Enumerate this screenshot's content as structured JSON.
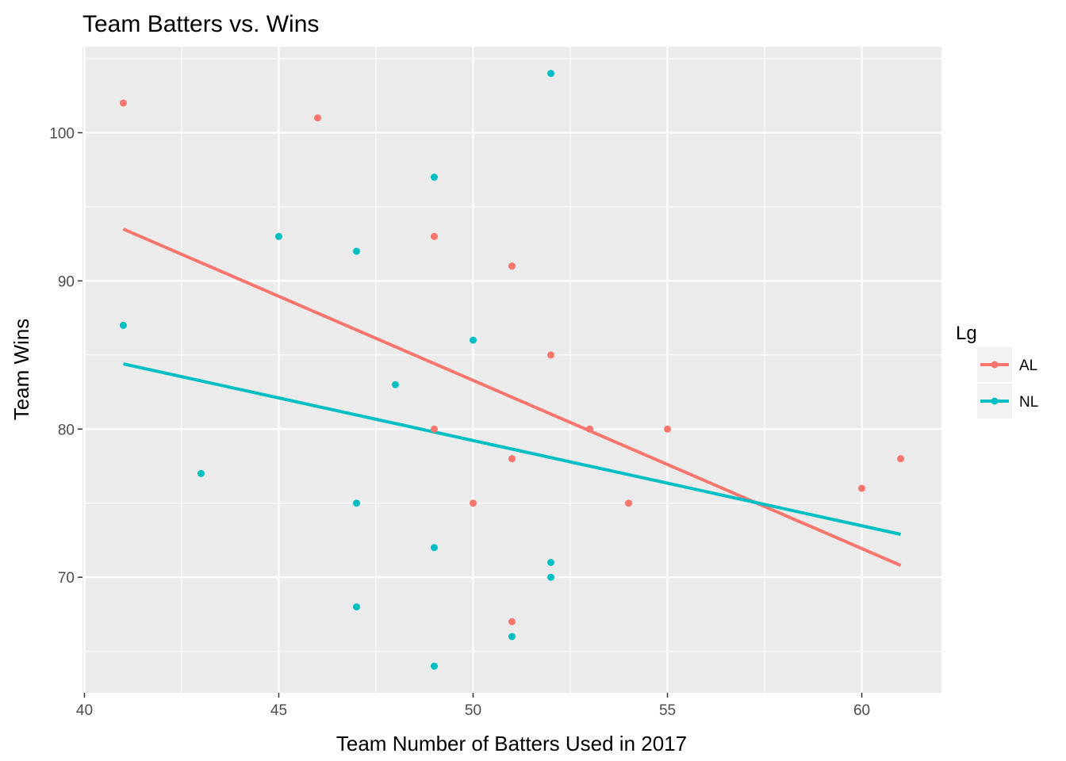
{
  "chart_data": {
    "type": "scatter",
    "title": "Team Batters vs. Wins",
    "xlabel": "Team Number of Batters Used in 2017",
    "ylabel": "Team Wins",
    "xlim": [
      39.95,
      62.05
    ],
    "ylim": [
      62.2,
      105.8
    ],
    "x_ticks": [
      40,
      45,
      50,
      55,
      60
    ],
    "x_tick_labels": [
      "40",
      "45",
      "50",
      "55",
      "60"
    ],
    "y_ticks": [
      70,
      80,
      90,
      100
    ],
    "y_tick_labels": [
      "70",
      "80",
      "90",
      "100"
    ],
    "grid": true,
    "legend": {
      "title": "Lg",
      "position": "right"
    },
    "series": [
      {
        "name": "AL",
        "color": "#F8766D",
        "points": [
          [
            41,
            102
          ],
          [
            46,
            101
          ],
          [
            49,
            93
          ],
          [
            49,
            80
          ],
          [
            50,
            75
          ],
          [
            51,
            91
          ],
          [
            51,
            78
          ],
          [
            51,
            67
          ],
          [
            52,
            85
          ],
          [
            53,
            80
          ],
          [
            54,
            75
          ],
          [
            55,
            80
          ],
          [
            60,
            76
          ],
          [
            61,
            78
          ]
        ],
        "fit_line": [
          [
            41,
            93.5
          ],
          [
            61,
            70.8
          ]
        ]
      },
      {
        "name": "NL",
        "color": "#00BFC4",
        "points": [
          [
            41,
            87
          ],
          [
            43,
            77
          ],
          [
            45,
            93
          ],
          [
            47,
            92
          ],
          [
            47,
            75
          ],
          [
            47,
            68
          ],
          [
            48,
            83
          ],
          [
            49,
            97
          ],
          [
            49,
            72
          ],
          [
            49,
            64
          ],
          [
            50,
            86
          ],
          [
            51,
            66
          ],
          [
            52,
            104
          ],
          [
            52,
            71
          ],
          [
            52,
            70
          ]
        ],
        "fit_line": [
          [
            41,
            84.4
          ],
          [
            61,
            72.9
          ]
        ]
      }
    ]
  }
}
